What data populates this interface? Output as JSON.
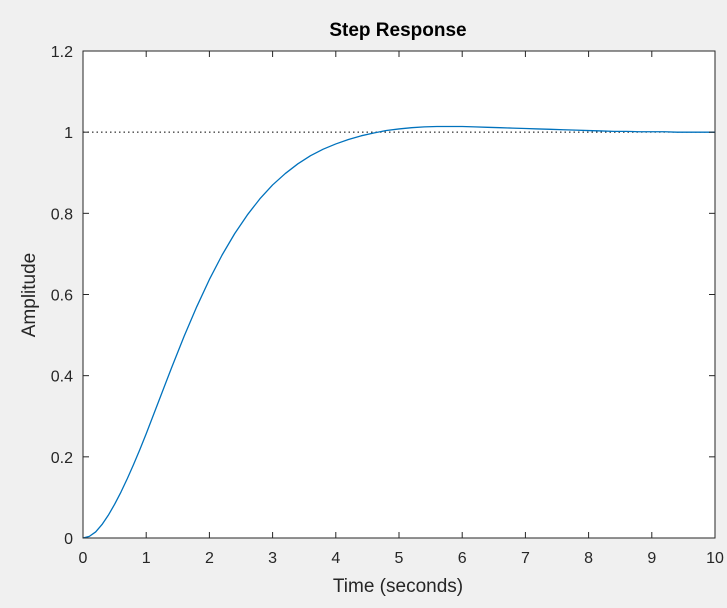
{
  "chart_data": {
    "type": "line",
    "title": "Step Response",
    "xlabel": "Time (seconds)",
    "ylabel": "Amplitude",
    "xlim": [
      0,
      10
    ],
    "ylim": [
      0,
      1.2
    ],
    "x_ticks": [
      0,
      1,
      2,
      3,
      4,
      5,
      6,
      7,
      8,
      9,
      10
    ],
    "x_tick_labels": [
      "0",
      "1",
      "2",
      "3",
      "4",
      "5",
      "6",
      "7",
      "8",
      "9",
      "10"
    ],
    "y_ticks": [
      0,
      0.2,
      0.4,
      0.6,
      0.8,
      1,
      1.2
    ],
    "y_tick_labels": [
      "0",
      "0.2",
      "0.4",
      "0.6",
      "0.8",
      "1",
      "1.2"
    ],
    "grid": false,
    "reference_line": {
      "y": 1,
      "style": "dotted",
      "color": "#000000"
    },
    "series": [
      {
        "color": "#0072bd",
        "x": [
          0,
          0.1,
          0.2,
          0.3,
          0.4,
          0.5,
          0.6,
          0.7,
          0.8,
          0.9,
          1.0,
          1.2,
          1.4,
          1.6,
          1.8,
          2.0,
          2.2,
          2.4,
          2.6,
          2.8,
          3.0,
          3.2,
          3.4,
          3.6,
          3.8,
          4.0,
          4.2,
          4.4,
          4.6,
          4.8,
          5.0,
          5.2,
          5.4,
          5.6,
          5.8,
          6.0,
          6.2,
          6.4,
          6.6,
          6.8,
          7.0,
          7.2,
          7.4,
          7.6,
          7.8,
          8.0,
          8.2,
          8.4,
          8.6,
          8.8,
          9.0,
          9.2,
          9.4,
          9.6,
          9.8,
          10.0
        ],
        "y": [
          0,
          0.004,
          0.015,
          0.033,
          0.056,
          0.083,
          0.113,
          0.146,
          0.181,
          0.218,
          0.257,
          0.338,
          0.419,
          0.497,
          0.57,
          0.637,
          0.697,
          0.75,
          0.796,
          0.836,
          0.87,
          0.898,
          0.922,
          0.942,
          0.958,
          0.971,
          0.982,
          0.991,
          0.998,
          1.004,
          1.008,
          1.011,
          1.013,
          1.014,
          1.014,
          1.014,
          1.013,
          1.012,
          1.011,
          1.01,
          1.009,
          1.008,
          1.007,
          1.006,
          1.005,
          1.004,
          1.003,
          1.002,
          1.002,
          1.001,
          1.001,
          1.001,
          1.0,
          1.0,
          1.0,
          1.0
        ]
      }
    ]
  },
  "colors": {
    "figure_background": "#f0f0f0",
    "axes_background": "#ffffff",
    "axes_edge": "#262626",
    "line": "#0072bd"
  }
}
